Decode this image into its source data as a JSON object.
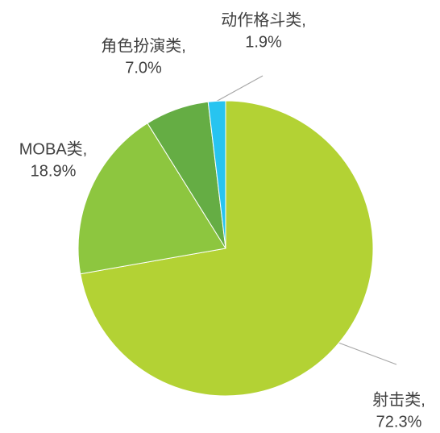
{
  "chart_data": {
    "type": "pie",
    "categories": [
      "射击类,",
      "MOBA类,",
      "角色扮演类,",
      "动作格斗类,"
    ],
    "values": [
      72.3,
      18.9,
      7.0,
      1.9
    ],
    "value_labels": [
      "72.3%",
      "18.9%",
      "7.0%",
      "1.9%"
    ],
    "colors": [
      "#b3d234",
      "#8dc63f",
      "#65ad44",
      "#27c4f0"
    ],
    "start_angle": 0,
    "direction": "clockwise"
  }
}
